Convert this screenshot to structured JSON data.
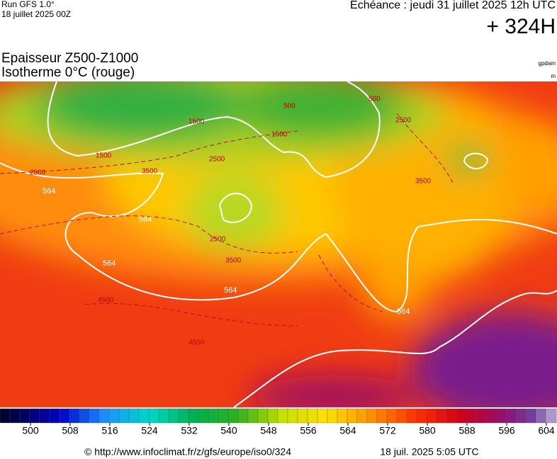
{
  "header": {
    "run": "Run GFS 1.0°",
    "run_date": "18 juillet 2025 00Z",
    "valid": "Echéance : jeudi 31 juillet 2025 12h UTC",
    "lead": "+ 324H"
  },
  "title": {
    "line1": "Epaisseur Z500-Z1000",
    "line2": "Isotherme 0°C (rouge)",
    "unit1": "gpdam",
    "unit2": "m"
  },
  "contour_labels": [
    564,
    564,
    564,
    564,
    564,
    1500,
    1500,
    1500,
    2500,
    2500,
    2500,
    2500,
    3500,
    3500,
    3500,
    4500,
    4500,
    500,
    500
  ],
  "colorbar": {
    "ticks": [
      500,
      508,
      516,
      524,
      532,
      540,
      548,
      556,
      564,
      572,
      580,
      588,
      596,
      604
    ]
  },
  "footer": {
    "source": "© http://www.infoclimat.fr/z/gfs/europe/iso0/324",
    "generated": "18 juil. 2025  5:05 UTC"
  }
}
